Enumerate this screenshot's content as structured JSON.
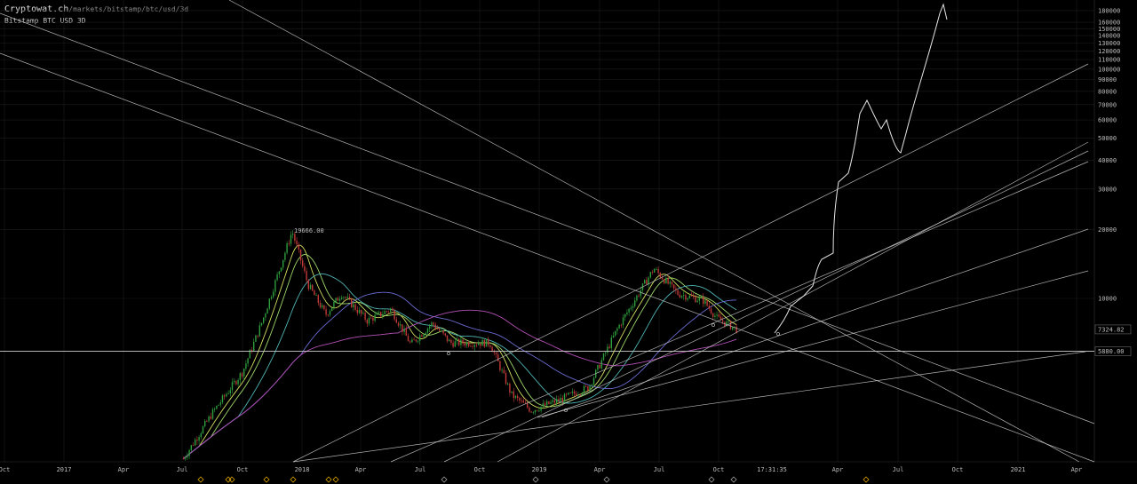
{
  "header": {
    "site": "Cryptowat.ch",
    "path": "/markets/bitstamp/btc/usd/3d",
    "symbol": "Bitstamp BTC USD 3D"
  },
  "colors": {
    "background": "#000000",
    "up_candle": "#2e9e3e",
    "down_candle": "#c23a3a",
    "drawing": "#d0d0d0",
    "grid": "#1c1c1c",
    "event_marker": "#d6a100"
  },
  "chart_data": {
    "type": "candlestick",
    "scale": "log",
    "grid": true,
    "y_ticks": [
      180000,
      160000,
      150000,
      140000,
      130000,
      120000,
      110000,
      100000,
      90000,
      80000,
      70000,
      60000,
      50000,
      40000,
      30000,
      20000,
      10000
    ],
    "x_ticks": [
      "Oct",
      "2017",
      "Apr",
      "Jul",
      "Oct",
      "2018",
      "Apr",
      "Jul",
      "Oct",
      "2019",
      "Apr",
      "Jul",
      "Oct",
      "Apr",
      "Jul",
      "Oct",
      "2021",
      "Apr"
    ],
    "ath_label": "19666.00",
    "current_price": "7324.82",
    "horizontal_level": "5880.00",
    "crosshair_time": "17:31:35",
    "approx_closes": [
      {
        "date": "2017-07",
        "close": 2500
      },
      {
        "date": "2017-09",
        "close": 4200
      },
      {
        "date": "2017-11",
        "close": 9000
      },
      {
        "date": "2017-12-17",
        "close": 19666
      },
      {
        "date": "2018-02",
        "close": 8500
      },
      {
        "date": "2018-04",
        "close": 8900
      },
      {
        "date": "2018-06",
        "close": 6300
      },
      {
        "date": "2018-09",
        "close": 6500
      },
      {
        "date": "2018-12",
        "close": 3300
      },
      {
        "date": "2019-03",
        "close": 4000
      },
      {
        "date": "2019-06",
        "close": 13000
      },
      {
        "date": "2019-09",
        "close": 8500
      },
      {
        "date": "2019-11",
        "close": 7324
      }
    ],
    "moving_averages": [
      {
        "color": "#d4e060"
      },
      {
        "color": "#9ed86a"
      },
      {
        "color": "#4fb3b3"
      },
      {
        "color": "#6a6ad0"
      },
      {
        "color": "#b24fb3"
      }
    ],
    "event_markers": 13
  }
}
